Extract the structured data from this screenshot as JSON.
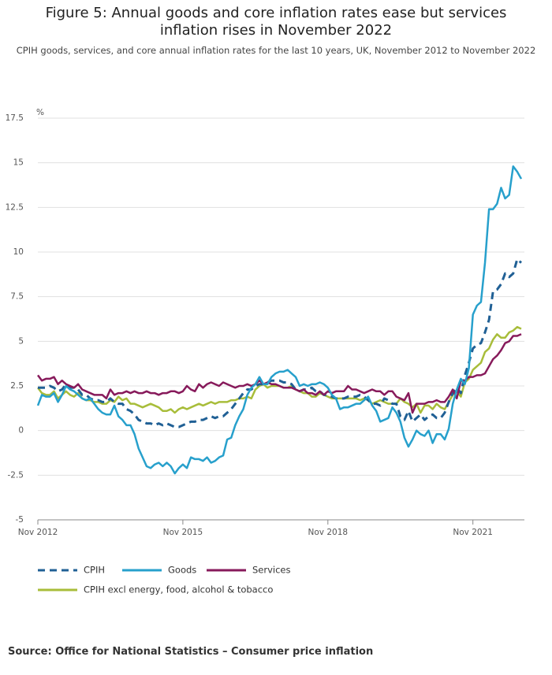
{
  "chart_data": {
    "type": "line",
    "title": "Figure 5: Annual goods and core inflation rates ease but services inflation rises in November 2022",
    "subtitle": "CPIH goods, services, and core annual inflation rates for the last 10 years, UK, November 2012 to November 2022",
    "y_label": "%",
    "source": "Source: Office for National Statistics – Consumer price inflation",
    "ylim": [
      -5,
      17.5
    ],
    "yticks": [
      17.5,
      15,
      12.5,
      10,
      7.5,
      5,
      2.5,
      0,
      -2.5,
      -5
    ],
    "grid": true,
    "categories": [
      "Nov 2012",
      null,
      null,
      null,
      null,
      null,
      null,
      null,
      null,
      null,
      null,
      null,
      null,
      null,
      null,
      null,
      null,
      null,
      null,
      null,
      null,
      null,
      null,
      null,
      null,
      null,
      null,
      null,
      null,
      null,
      null,
      null,
      null,
      null,
      null,
      null,
      "Nov 2015",
      null,
      null,
      null,
      null,
      null,
      null,
      null,
      null,
      null,
      null,
      null,
      null,
      null,
      null,
      null,
      null,
      null,
      null,
      null,
      null,
      null,
      null,
      null,
      null,
      null,
      null,
      null,
      null,
      null,
      null,
      null,
      null,
      null,
      null,
      null,
      "Nov 2018",
      null,
      null,
      null,
      null,
      null,
      null,
      null,
      null,
      null,
      null,
      null,
      null,
      null,
      null,
      null,
      null,
      null,
      null,
      null,
      null,
      null,
      null,
      null,
      null,
      null,
      null,
      null,
      null,
      null,
      null,
      null,
      null,
      null,
      null,
      null,
      "Nov 2021",
      null,
      null,
      null,
      null,
      null,
      null,
      null,
      null,
      null,
      null,
      null,
      null
    ],
    "series": [
      {
        "name": "CPIH",
        "color": "#206095",
        "dashed": true,
        "values": [
          2.4,
          2.4,
          2.4,
          2.5,
          2.4,
          2.2,
          2.3,
          2.6,
          2.4,
          2.4,
          2.3,
          2.0,
          2.0,
          1.8,
          1.7,
          1.7,
          1.6,
          1.6,
          1.8,
          1.6,
          1.5,
          1.5,
          1.2,
          1.1,
          0.9,
          0.6,
          0.5,
          0.4,
          0.4,
          0.3,
          0.4,
          0.3,
          0.4,
          0.3,
          0.2,
          0.2,
          0.3,
          0.4,
          0.5,
          0.5,
          0.6,
          0.6,
          0.7,
          0.8,
          0.7,
          0.8,
          0.8,
          1.0,
          1.2,
          1.5,
          1.8,
          2.1,
          2.3,
          2.3,
          2.5,
          2.6,
          2.6,
          2.7,
          2.8,
          2.8,
          2.8,
          2.7,
          2.7,
          2.6,
          2.3,
          2.2,
          2.3,
          2.3,
          2.4,
          2.2,
          2.2,
          2.0,
          2.0,
          1.9,
          1.8,
          1.8,
          1.8,
          1.9,
          1.9,
          1.9,
          2.0,
          1.9,
          1.7,
          1.5,
          1.5,
          1.4,
          1.8,
          1.7,
          1.5,
          1.5,
          0.8,
          0.6,
          1.1,
          0.5,
          0.7,
          0.9,
          0.6,
          0.8,
          0.9,
          0.7,
          0.7,
          1.0,
          1.6,
          2.1,
          2.4,
          2.1,
          3.1,
          3.8,
          4.6,
          4.8,
          4.9,
          5.5,
          6.2,
          7.8,
          7.9,
          8.2,
          8.8,
          8.6,
          8.8,
          9.6,
          9.4
        ]
      },
      {
        "name": "Goods",
        "color": "#27a0cc",
        "values": [
          1.4,
          2.0,
          1.9,
          1.9,
          2.1,
          1.6,
          2.0,
          2.5,
          2.3,
          2.2,
          2.0,
          1.8,
          1.7,
          1.8,
          1.5,
          1.2,
          1.0,
          0.9,
          0.9,
          1.4,
          0.8,
          0.6,
          0.3,
          0.3,
          -0.2,
          -1.0,
          -1.5,
          -2.0,
          -2.1,
          -1.9,
          -1.8,
          -2.0,
          -1.8,
          -2.0,
          -2.4,
          -2.1,
          -1.9,
          -2.1,
          -1.5,
          -1.6,
          -1.6,
          -1.7,
          -1.5,
          -1.8,
          -1.7,
          -1.5,
          -1.4,
          -0.5,
          -0.4,
          0.3,
          0.8,
          1.2,
          2.0,
          2.4,
          2.6,
          3.0,
          2.6,
          2.6,
          3.0,
          3.2,
          3.3,
          3.3,
          3.4,
          3.2,
          3.0,
          2.5,
          2.6,
          2.5,
          2.6,
          2.6,
          2.7,
          2.6,
          2.4,
          2.0,
          1.8,
          1.2,
          1.3,
          1.3,
          1.4,
          1.5,
          1.5,
          1.7,
          1.9,
          1.4,
          1.1,
          0.5,
          0.6,
          0.7,
          1.3,
          1.0,
          0.5,
          -0.4,
          -0.9,
          -0.5,
          0.0,
          -0.2,
          -0.3,
          0.0,
          -0.7,
          -0.2,
          -0.2,
          -0.5,
          0.1,
          1.5,
          2.3,
          2.9,
          2.6,
          3.5,
          6.5,
          7.0,
          7.2,
          9.4,
          12.4,
          12.4,
          12.7,
          13.6,
          13.0,
          13.2,
          14.8,
          14.5,
          14.1
        ]
      },
      {
        "name": "Services",
        "color": "#871a5b",
        "values": [
          3.1,
          2.8,
          2.9,
          2.9,
          3.0,
          2.6,
          2.8,
          2.6,
          2.5,
          2.4,
          2.6,
          2.3,
          2.2,
          2.1,
          2.0,
          2.0,
          2.0,
          1.8,
          2.3,
          2.0,
          2.1,
          2.1,
          2.2,
          2.1,
          2.2,
          2.1,
          2.1,
          2.2,
          2.1,
          2.1,
          2.0,
          2.1,
          2.1,
          2.2,
          2.2,
          2.1,
          2.2,
          2.5,
          2.3,
          2.2,
          2.6,
          2.4,
          2.6,
          2.7,
          2.6,
          2.5,
          2.7,
          2.6,
          2.5,
          2.4,
          2.5,
          2.5,
          2.6,
          2.5,
          2.6,
          2.8,
          2.6,
          2.7,
          2.6,
          2.6,
          2.5,
          2.4,
          2.4,
          2.4,
          2.3,
          2.2,
          2.3,
          2.1,
          2.1,
          2.0,
          2.2,
          2.0,
          2.2,
          2.1,
          2.2,
          2.2,
          2.2,
          2.5,
          2.3,
          2.3,
          2.2,
          2.1,
          2.2,
          2.3,
          2.2,
          2.2,
          2.0,
          2.2,
          2.2,
          1.9,
          1.8,
          1.7,
          2.1,
          1.0,
          1.5,
          1.5,
          1.5,
          1.6,
          1.6,
          1.7,
          1.6,
          1.6,
          1.9,
          2.3,
          1.8,
          2.8,
          2.8,
          3.0,
          3.0,
          3.1,
          3.1,
          3.2,
          3.6,
          4.0,
          4.2,
          4.5,
          4.9,
          5.0,
          5.3,
          5.3,
          5.4
        ]
      },
      {
        "name": "CPIH excl energy, food, alcohol & tobacco",
        "color": "#a8bd3a",
        "values": [
          2.4,
          2.1,
          2.0,
          2.0,
          2.2,
          1.8,
          2.0,
          2.2,
          2.0,
          1.9,
          2.1,
          1.8,
          1.7,
          1.7,
          1.6,
          1.6,
          1.5,
          1.5,
          1.7,
          1.6,
          1.9,
          1.7,
          1.8,
          1.5,
          1.5,
          1.4,
          1.3,
          1.4,
          1.5,
          1.4,
          1.3,
          1.1,
          1.1,
          1.2,
          1.0,
          1.2,
          1.3,
          1.2,
          1.3,
          1.4,
          1.5,
          1.4,
          1.5,
          1.6,
          1.5,
          1.6,
          1.6,
          1.6,
          1.7,
          1.7,
          1.8,
          1.8,
          1.9,
          1.8,
          2.3,
          2.5,
          2.6,
          2.4,
          2.5,
          2.5,
          2.5,
          2.4,
          2.4,
          2.5,
          2.3,
          2.2,
          2.1,
          2.1,
          1.9,
          1.9,
          2.1,
          2.0,
          1.9,
          1.8,
          1.8,
          1.8,
          1.8,
          1.8,
          1.8,
          1.8,
          1.7,
          1.8,
          1.7,
          1.5,
          1.6,
          1.7,
          1.6,
          1.5,
          1.5,
          1.5,
          1.8,
          1.6,
          1.5,
          1.3,
          1.5,
          1.0,
          1.4,
          1.4,
          1.2,
          1.5,
          1.3,
          1.2,
          1.6,
          2.0,
          2.2,
          1.9,
          2.7,
          2.9,
          3.4,
          3.6,
          3.8,
          4.4,
          4.6,
          5.1,
          5.4,
          5.2,
          5.2,
          5.5,
          5.6,
          5.8,
          5.7
        ]
      }
    ]
  }
}
